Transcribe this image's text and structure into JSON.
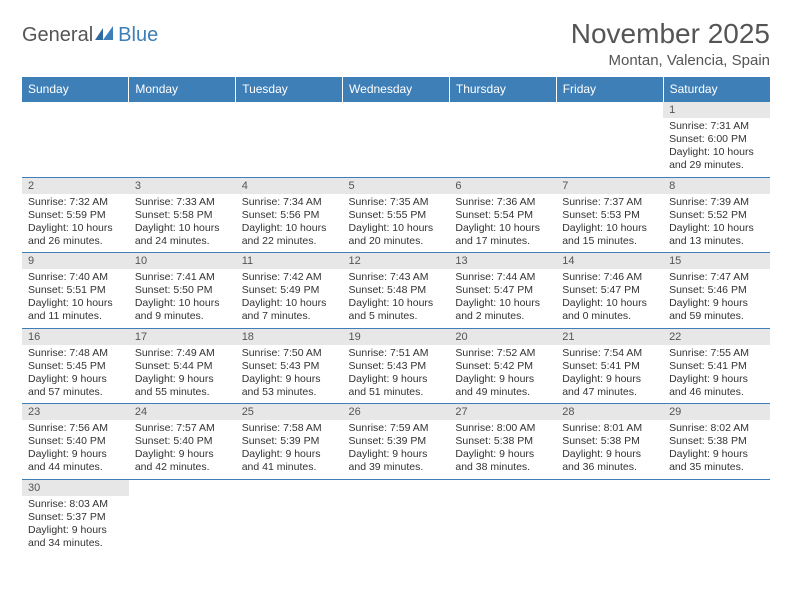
{
  "logo": {
    "part1": "General",
    "part2": "Blue"
  },
  "title": "November 2025",
  "location": "Montan, Valencia, Spain",
  "colors": {
    "header_bg": "#3e7fb8",
    "header_text": "#ffffff",
    "daynum_bg": "#e7e7e7",
    "border": "#3e7fb8",
    "text": "#333333",
    "logo_gray": "#555555",
    "logo_blue": "#3e7fb8"
  },
  "weekdays": [
    "Sunday",
    "Monday",
    "Tuesday",
    "Wednesday",
    "Thursday",
    "Friday",
    "Saturday"
  ],
  "weeks": [
    [
      null,
      null,
      null,
      null,
      null,
      null,
      {
        "n": "1",
        "sr": "Sunrise: 7:31 AM",
        "ss": "Sunset: 6:00 PM",
        "dl": "Daylight: 10 hours and 29 minutes."
      }
    ],
    [
      {
        "n": "2",
        "sr": "Sunrise: 7:32 AM",
        "ss": "Sunset: 5:59 PM",
        "dl": "Daylight: 10 hours and 26 minutes."
      },
      {
        "n": "3",
        "sr": "Sunrise: 7:33 AM",
        "ss": "Sunset: 5:58 PM",
        "dl": "Daylight: 10 hours and 24 minutes."
      },
      {
        "n": "4",
        "sr": "Sunrise: 7:34 AM",
        "ss": "Sunset: 5:56 PM",
        "dl": "Daylight: 10 hours and 22 minutes."
      },
      {
        "n": "5",
        "sr": "Sunrise: 7:35 AM",
        "ss": "Sunset: 5:55 PM",
        "dl": "Daylight: 10 hours and 20 minutes."
      },
      {
        "n": "6",
        "sr": "Sunrise: 7:36 AM",
        "ss": "Sunset: 5:54 PM",
        "dl": "Daylight: 10 hours and 17 minutes."
      },
      {
        "n": "7",
        "sr": "Sunrise: 7:37 AM",
        "ss": "Sunset: 5:53 PM",
        "dl": "Daylight: 10 hours and 15 minutes."
      },
      {
        "n": "8",
        "sr": "Sunrise: 7:39 AM",
        "ss": "Sunset: 5:52 PM",
        "dl": "Daylight: 10 hours and 13 minutes."
      }
    ],
    [
      {
        "n": "9",
        "sr": "Sunrise: 7:40 AM",
        "ss": "Sunset: 5:51 PM",
        "dl": "Daylight: 10 hours and 11 minutes."
      },
      {
        "n": "10",
        "sr": "Sunrise: 7:41 AM",
        "ss": "Sunset: 5:50 PM",
        "dl": "Daylight: 10 hours and 9 minutes."
      },
      {
        "n": "11",
        "sr": "Sunrise: 7:42 AM",
        "ss": "Sunset: 5:49 PM",
        "dl": "Daylight: 10 hours and 7 minutes."
      },
      {
        "n": "12",
        "sr": "Sunrise: 7:43 AM",
        "ss": "Sunset: 5:48 PM",
        "dl": "Daylight: 10 hours and 5 minutes."
      },
      {
        "n": "13",
        "sr": "Sunrise: 7:44 AM",
        "ss": "Sunset: 5:47 PM",
        "dl": "Daylight: 10 hours and 2 minutes."
      },
      {
        "n": "14",
        "sr": "Sunrise: 7:46 AM",
        "ss": "Sunset: 5:47 PM",
        "dl": "Daylight: 10 hours and 0 minutes."
      },
      {
        "n": "15",
        "sr": "Sunrise: 7:47 AM",
        "ss": "Sunset: 5:46 PM",
        "dl": "Daylight: 9 hours and 59 minutes."
      }
    ],
    [
      {
        "n": "16",
        "sr": "Sunrise: 7:48 AM",
        "ss": "Sunset: 5:45 PM",
        "dl": "Daylight: 9 hours and 57 minutes."
      },
      {
        "n": "17",
        "sr": "Sunrise: 7:49 AM",
        "ss": "Sunset: 5:44 PM",
        "dl": "Daylight: 9 hours and 55 minutes."
      },
      {
        "n": "18",
        "sr": "Sunrise: 7:50 AM",
        "ss": "Sunset: 5:43 PM",
        "dl": "Daylight: 9 hours and 53 minutes."
      },
      {
        "n": "19",
        "sr": "Sunrise: 7:51 AM",
        "ss": "Sunset: 5:43 PM",
        "dl": "Daylight: 9 hours and 51 minutes."
      },
      {
        "n": "20",
        "sr": "Sunrise: 7:52 AM",
        "ss": "Sunset: 5:42 PM",
        "dl": "Daylight: 9 hours and 49 minutes."
      },
      {
        "n": "21",
        "sr": "Sunrise: 7:54 AM",
        "ss": "Sunset: 5:41 PM",
        "dl": "Daylight: 9 hours and 47 minutes."
      },
      {
        "n": "22",
        "sr": "Sunrise: 7:55 AM",
        "ss": "Sunset: 5:41 PM",
        "dl": "Daylight: 9 hours and 46 minutes."
      }
    ],
    [
      {
        "n": "23",
        "sr": "Sunrise: 7:56 AM",
        "ss": "Sunset: 5:40 PM",
        "dl": "Daylight: 9 hours and 44 minutes."
      },
      {
        "n": "24",
        "sr": "Sunrise: 7:57 AM",
        "ss": "Sunset: 5:40 PM",
        "dl": "Daylight: 9 hours and 42 minutes."
      },
      {
        "n": "25",
        "sr": "Sunrise: 7:58 AM",
        "ss": "Sunset: 5:39 PM",
        "dl": "Daylight: 9 hours and 41 minutes."
      },
      {
        "n": "26",
        "sr": "Sunrise: 7:59 AM",
        "ss": "Sunset: 5:39 PM",
        "dl": "Daylight: 9 hours and 39 minutes."
      },
      {
        "n": "27",
        "sr": "Sunrise: 8:00 AM",
        "ss": "Sunset: 5:38 PM",
        "dl": "Daylight: 9 hours and 38 minutes."
      },
      {
        "n": "28",
        "sr": "Sunrise: 8:01 AM",
        "ss": "Sunset: 5:38 PM",
        "dl": "Daylight: 9 hours and 36 minutes."
      },
      {
        "n": "29",
        "sr": "Sunrise: 8:02 AM",
        "ss": "Sunset: 5:38 PM",
        "dl": "Daylight: 9 hours and 35 minutes."
      }
    ],
    [
      {
        "n": "30",
        "sr": "Sunrise: 8:03 AM",
        "ss": "Sunset: 5:37 PM",
        "dl": "Daylight: 9 hours and 34 minutes."
      },
      null,
      null,
      null,
      null,
      null,
      null
    ]
  ]
}
